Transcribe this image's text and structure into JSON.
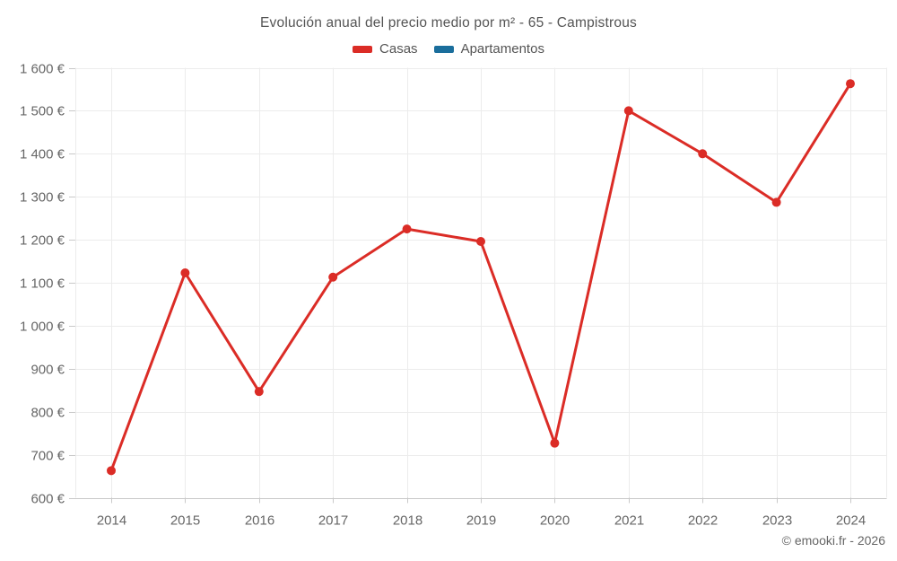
{
  "chart_data": {
    "type": "line",
    "title": "Evolución anual del precio medio por m² - 65 - Campistrous",
    "categories": [
      "2014",
      "2015",
      "2016",
      "2017",
      "2018",
      "2019",
      "2020",
      "2021",
      "2022",
      "2023",
      "2024"
    ],
    "series": [
      {
        "name": "Casas",
        "color": "#db2c26",
        "values": [
          663,
          1123,
          847,
          1113,
          1225,
          1196,
          727,
          1500,
          1400,
          1287,
          1563
        ]
      },
      {
        "name": "Apartamentos",
        "color": "#1a6e9c",
        "values": []
      }
    ],
    "ylim": [
      600,
      1600
    ],
    "y_tick_step": 100,
    "y_tick_labels": [
      "600 €",
      "700 €",
      "800 €",
      "900 €",
      "1 000 €",
      "1 100 €",
      "1 200 €",
      "1 300 €",
      "1 400 €",
      "1 500 €",
      "1 600 €"
    ],
    "grid": true,
    "legend_position": "top",
    "footer": "© emooki.fr - 2026"
  }
}
